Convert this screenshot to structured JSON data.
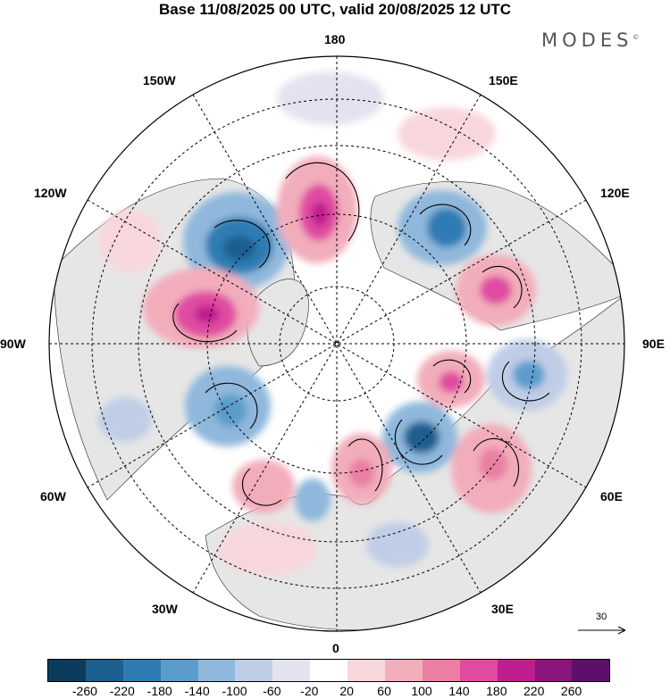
{
  "title": "Base 11/08/2025 00 UTC, valid 20/08/2025 12 UTC",
  "brand": "MODES",
  "brand_mark": "©",
  "longitude_labels": {
    "top": "180",
    "top_left": "150W",
    "top_right": "150E",
    "upper_left": "120W",
    "upper_right": "120E",
    "left": "90W",
    "right": "90E",
    "lower_left": "60W",
    "lower_right": "60E",
    "bottom_left": "30W",
    "bottom_right": "30E",
    "bottom": "0"
  },
  "reference_vector": {
    "label": "30",
    "icon": "arrow-right-icon"
  },
  "colorbar": {
    "ticks": [
      "-260",
      "-220",
      "-180",
      "-140",
      "-100",
      "-60",
      "-20",
      "20",
      "60",
      "100",
      "140",
      "180",
      "220",
      "260"
    ],
    "colors": [
      "#0b3b5c",
      "#1d5f8f",
      "#2f7cb3",
      "#5c9ccc",
      "#8fb8dc",
      "#bfcde6",
      "#e3e3f0",
      "#ffffff",
      "#f8d7dc",
      "#f2adbb",
      "#ea7fa3",
      "#e04ba1",
      "#bf1f8e",
      "#8a157d",
      "#5d0f6b"
    ]
  },
  "map_layers": [
    "land-outline",
    "anomaly-shading",
    "wind-vectors",
    "latitude-circles",
    "meridians"
  ]
}
